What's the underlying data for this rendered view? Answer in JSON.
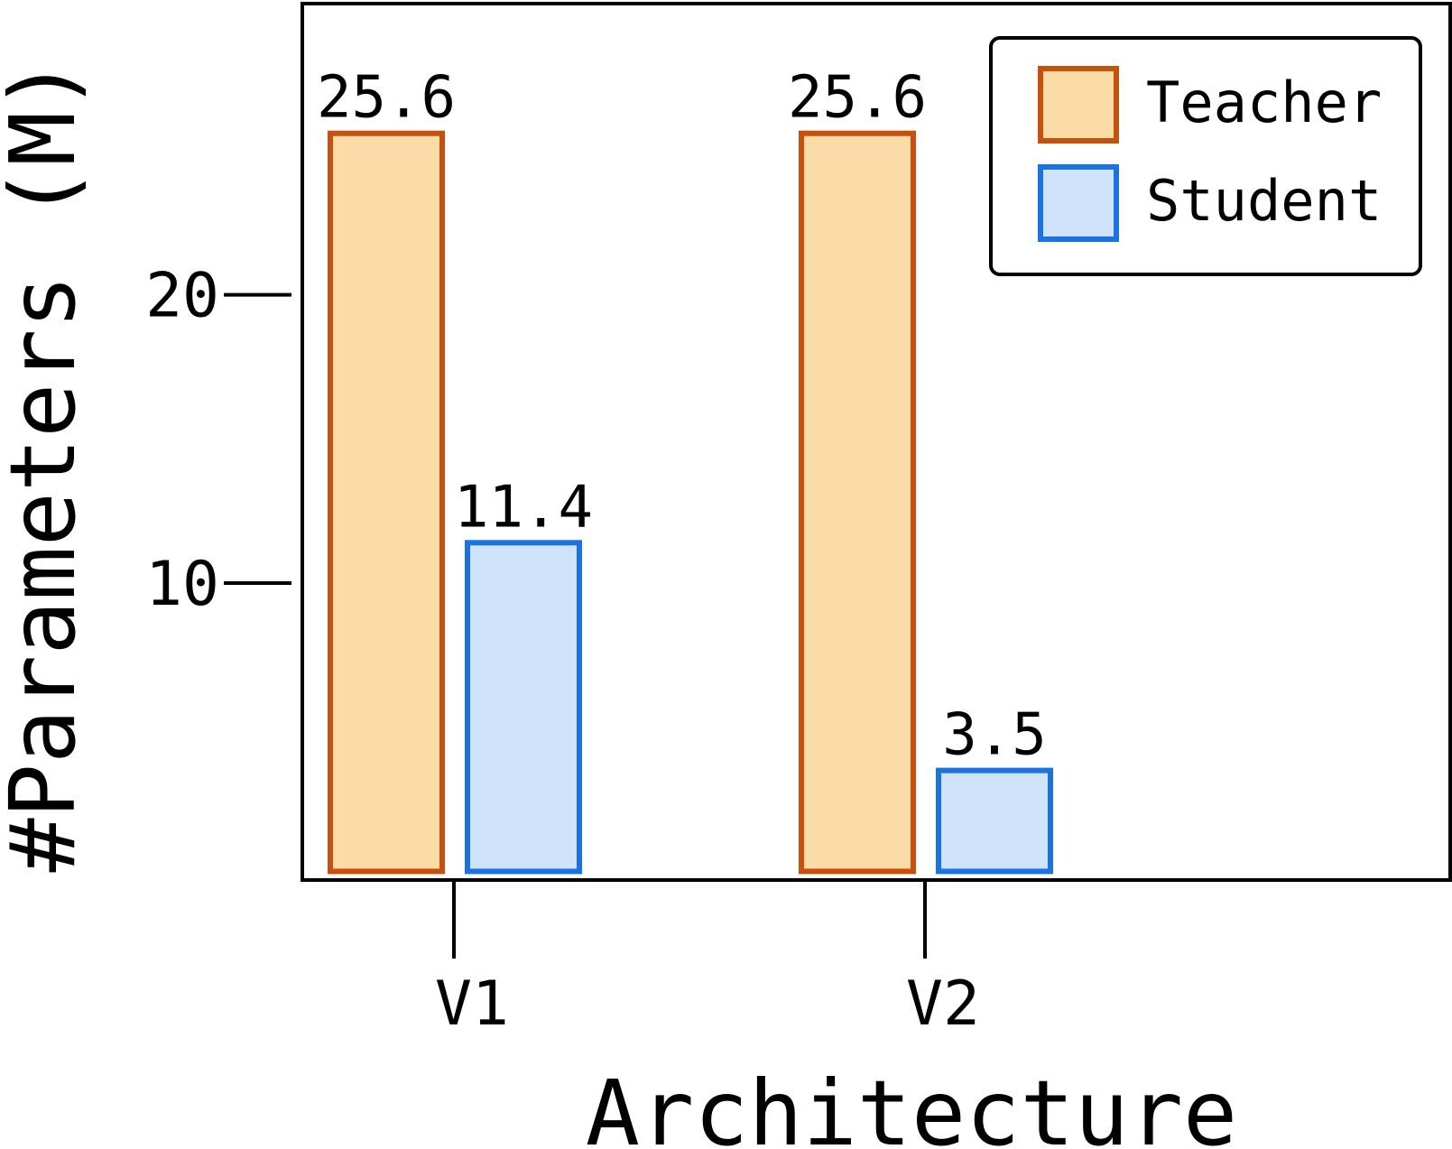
{
  "chart_data": {
    "type": "bar",
    "title": "",
    "xlabel": "Architecture",
    "ylabel": "#Parameters (M)",
    "categories": [
      "V1",
      "V2"
    ],
    "series": [
      {
        "name": "Teacher",
        "values": [
          25.6,
          25.6
        ],
        "value_labels": [
          "25.6",
          "25.6"
        ]
      },
      {
        "name": "Student",
        "values": [
          11.4,
          3.5
        ],
        "value_labels": [
          "11.4",
          "3.5"
        ]
      }
    ],
    "yticks": [
      10,
      20
    ],
    "ytick_labels": [
      "10",
      "20"
    ],
    "ylim": [
      -0.3,
      30.1
    ],
    "grid": false,
    "legend_placement": "top-right"
  },
  "colors": {
    "teacher_fill": "#fcdca6",
    "teacher_edge": "#c8500e",
    "student_fill": "#cfe3fb",
    "student_edge": "#1a73e0",
    "axis": "#000000"
  }
}
